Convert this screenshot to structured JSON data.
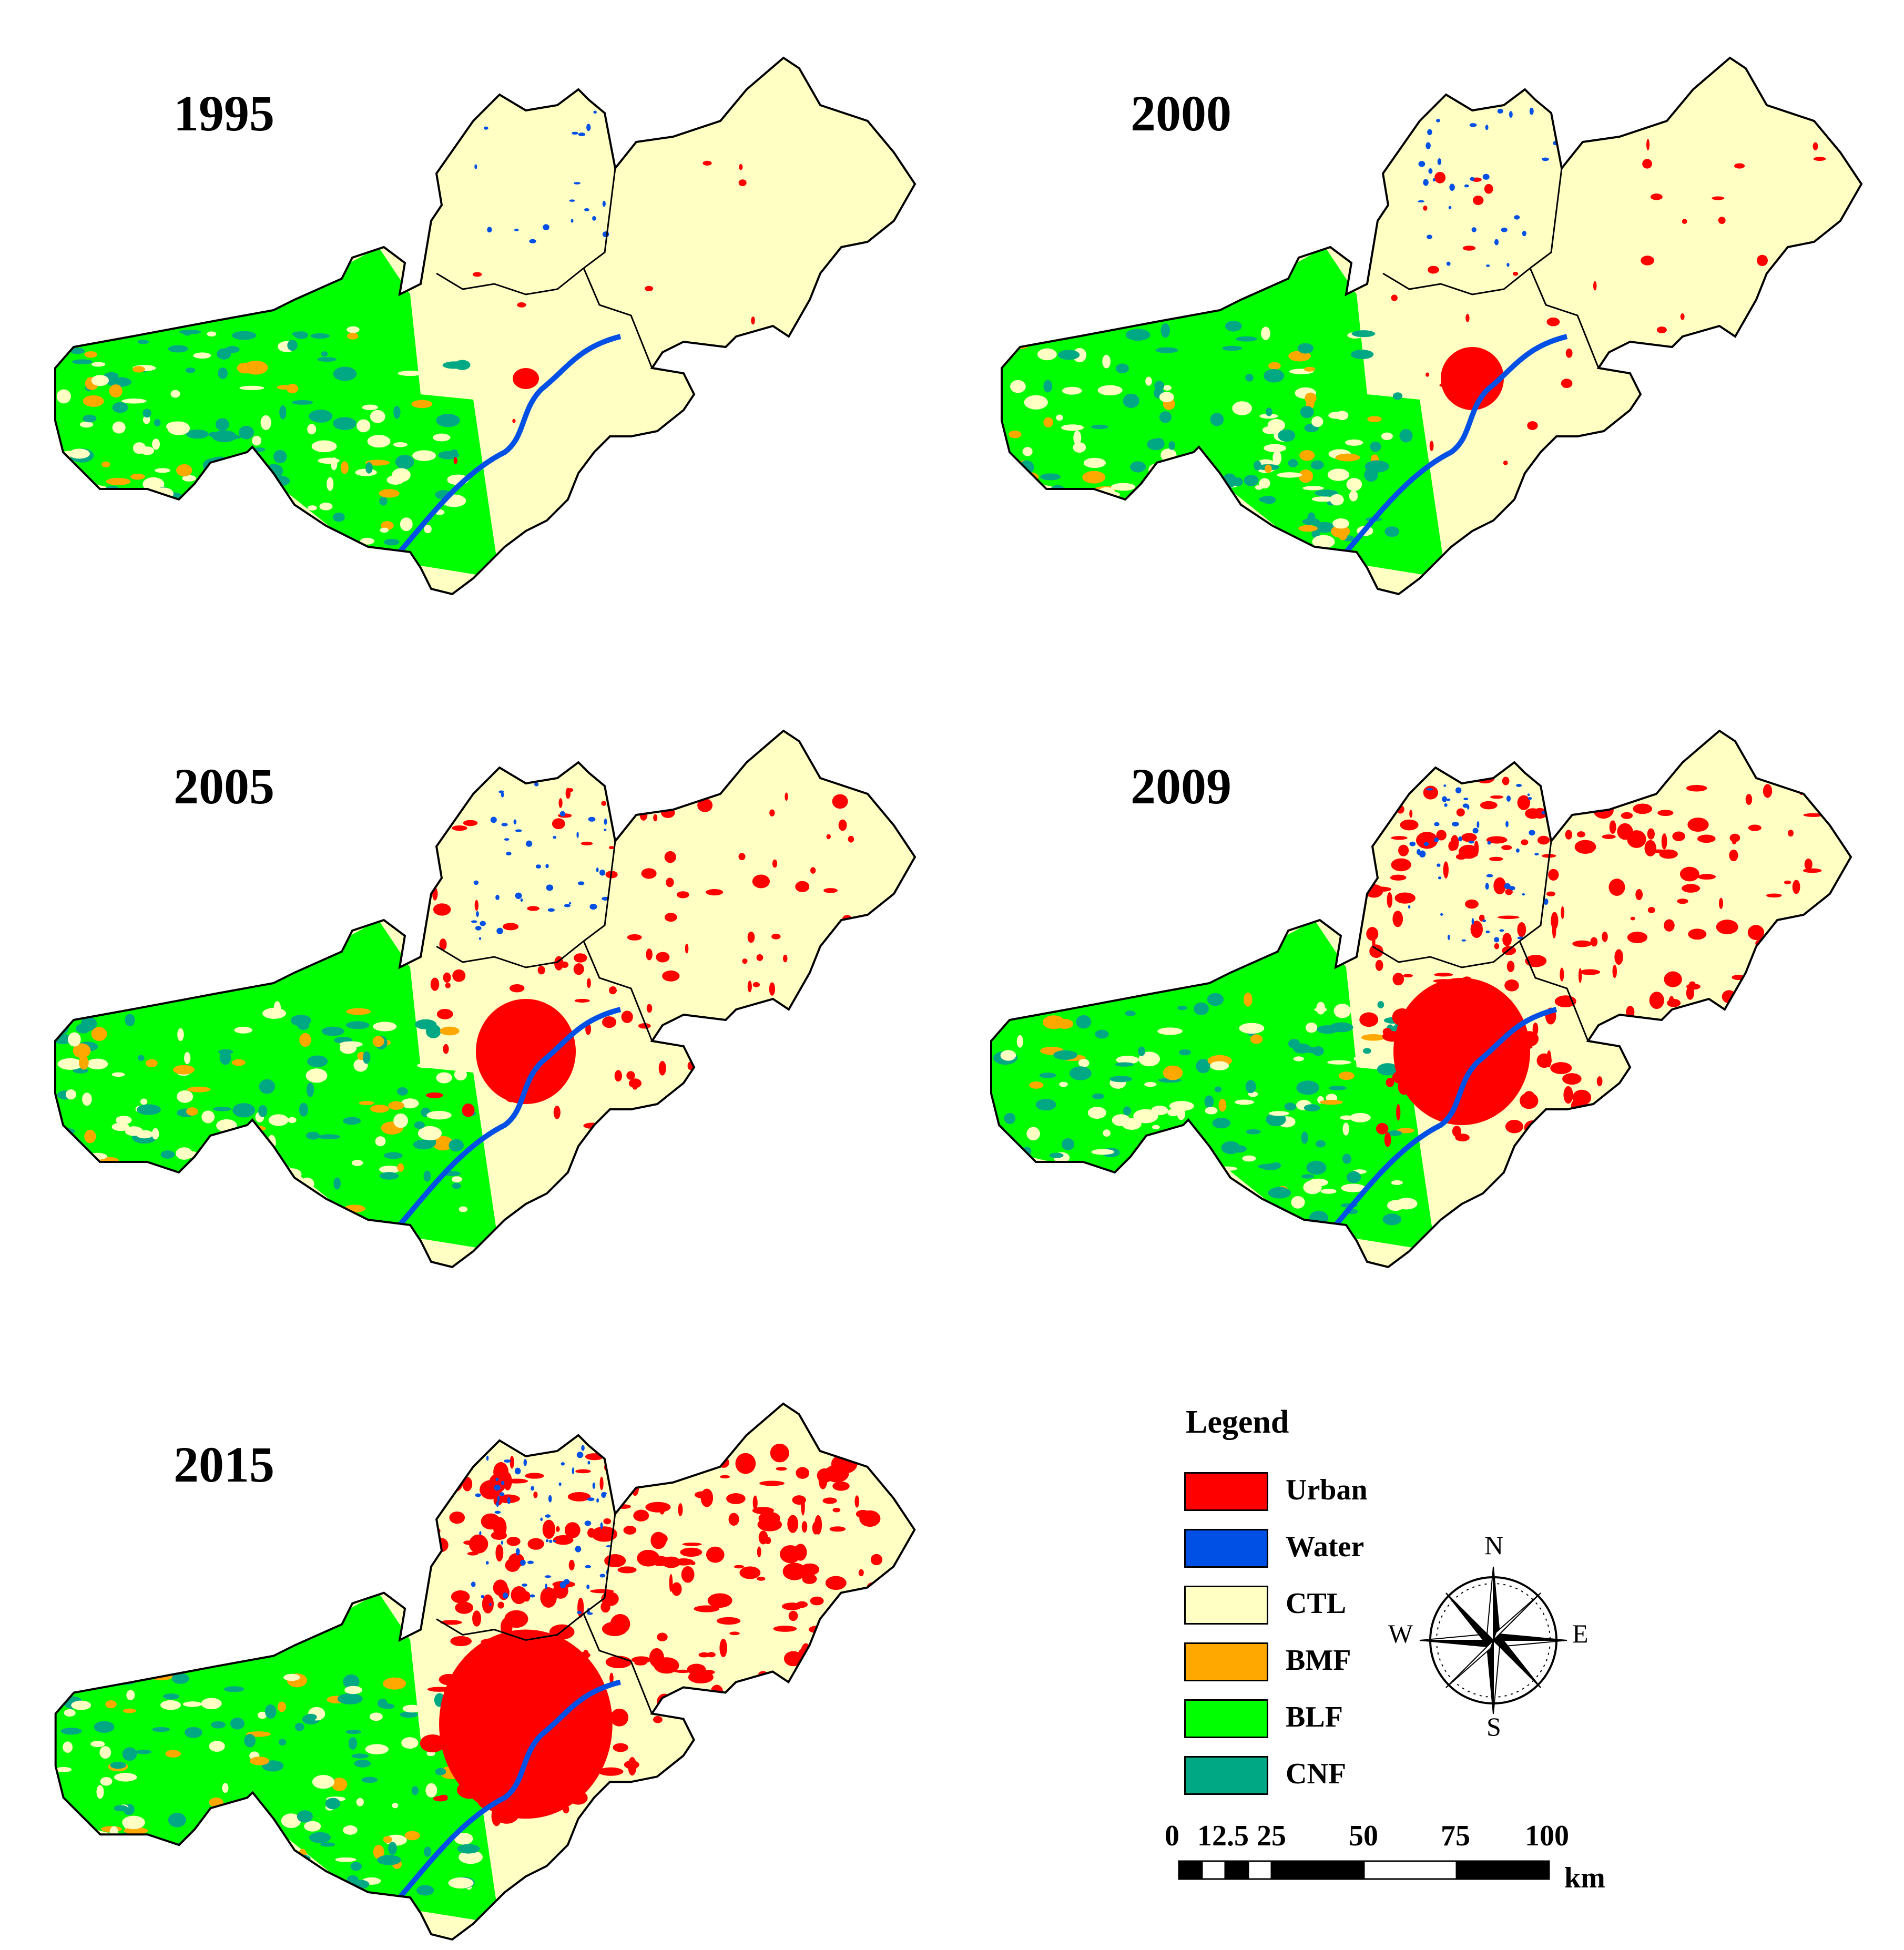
{
  "panels": [
    {
      "year": "1995"
    },
    {
      "year": "2000"
    },
    {
      "year": "2005"
    },
    {
      "year": "2009"
    },
    {
      "year": "2015"
    }
  ],
  "legend": {
    "title": "Legend",
    "items": [
      {
        "label": "Urban",
        "color": "#ff0000"
      },
      {
        "label": "Water",
        "color": "#0050e6"
      },
      {
        "label": "CTL",
        "color": "#ffffc4"
      },
      {
        "label": "BMF",
        "color": "#ffa800"
      },
      {
        "label": "BLF",
        "color": "#00ff00"
      },
      {
        "label": "CNF",
        "color": "#00a884"
      }
    ]
  },
  "compass": {
    "n": "N",
    "s": "S",
    "e": "E",
    "w": "W"
  },
  "scale_bar": {
    "ticks": [
      "0",
      "12.5",
      "25",
      "50",
      "75",
      "100"
    ],
    "unit": "km"
  }
}
